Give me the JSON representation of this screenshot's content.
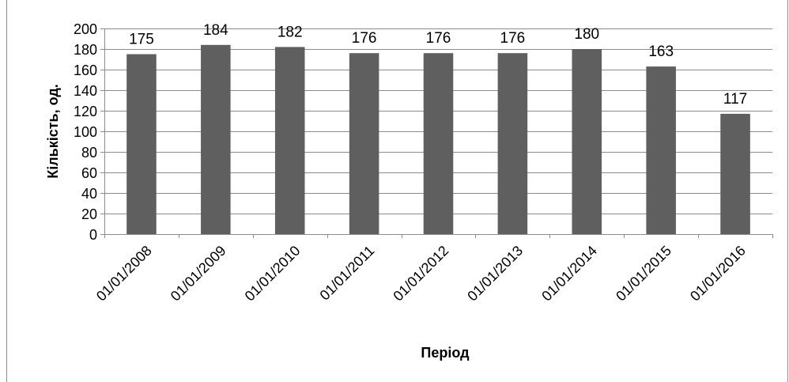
{
  "chart_data": {
    "type": "bar",
    "title": "",
    "xlabel": "Період",
    "ylabel": "Кількість, од.",
    "categories": [
      "01/01/2008",
      "01/01/2009",
      "01/01/2010",
      "01/01/2011",
      "01/01/2012",
      "01/01/2013",
      "01/01/2014",
      "01/01/2015",
      "01/01/2016"
    ],
    "values": [
      175,
      184,
      182,
      176,
      176,
      176,
      180,
      163,
      117
    ],
    "ylim": [
      0,
      200
    ],
    "yticks": [
      0,
      20,
      40,
      60,
      80,
      100,
      120,
      140,
      160,
      180,
      200
    ],
    "grid": true,
    "legend": "none",
    "data_labels": true,
    "bar_color": "#5f5f5f",
    "grid_color": "#8c8c8c"
  }
}
